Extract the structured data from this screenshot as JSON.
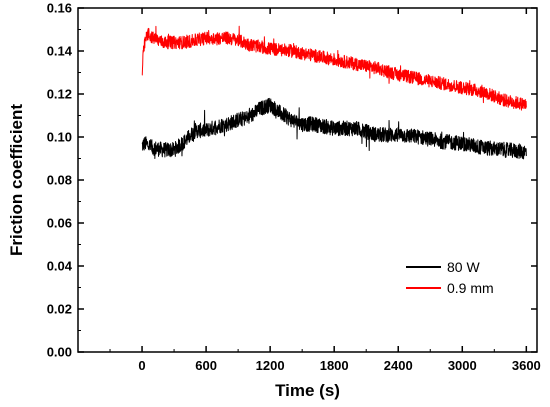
{
  "chart_data": {
    "type": "line",
    "title": "",
    "xlabel": "Time (s)",
    "ylabel": "Friction coefficient",
    "xlim": [
      -600,
      3700
    ],
    "ylim": [
      0.0,
      0.16
    ],
    "xticks": [
      0,
      600,
      1200,
      1800,
      2400,
      3000,
      3600
    ],
    "xtick_labels": [
      "0",
      "600",
      "1200",
      "1800",
      "2400",
      "3000",
      "3600"
    ],
    "yticks": [
      0.0,
      0.02,
      0.04,
      0.06,
      0.08,
      0.1,
      0.12,
      0.14,
      0.16
    ],
    "ytick_labels": [
      "0.00",
      "0.02",
      "0.04",
      "0.06",
      "0.08",
      "0.10",
      "0.12",
      "0.14",
      "0.16"
    ],
    "grid": false,
    "legend_position": "bottom-right",
    "series": [
      {
        "name": "80 W",
        "color": "#000000",
        "noise": 0.0035,
        "x": [
          0,
          30,
          100,
          200,
          300,
          400,
          500,
          600,
          700,
          800,
          900,
          1000,
          1100,
          1200,
          1300,
          1400,
          1500,
          1600,
          1800,
          2000,
          2200,
          2400,
          2600,
          2800,
          3000,
          3200,
          3400,
          3600
        ],
        "y": [
          0.096,
          0.097,
          0.095,
          0.094,
          0.094,
          0.098,
          0.103,
          0.103,
          0.105,
          0.106,
          0.108,
          0.109,
          0.113,
          0.115,
          0.111,
          0.108,
          0.106,
          0.106,
          0.104,
          0.104,
          0.101,
          0.101,
          0.1,
          0.098,
          0.097,
          0.095,
          0.094,
          0.093
        ]
      },
      {
        "name": "0.9 mm",
        "color": "#ff0000",
        "noise": 0.003,
        "x": [
          0,
          10,
          30,
          60,
          100,
          150,
          200,
          300,
          400,
          500,
          600,
          700,
          800,
          900,
          1000,
          1200,
          1400,
          1600,
          1800,
          2000,
          2200,
          2400,
          2600,
          2800,
          3000,
          3200,
          3400,
          3600
        ],
        "y": [
          0.128,
          0.138,
          0.145,
          0.148,
          0.146,
          0.145,
          0.144,
          0.144,
          0.144,
          0.145,
          0.146,
          0.146,
          0.146,
          0.145,
          0.143,
          0.141,
          0.14,
          0.138,
          0.136,
          0.134,
          0.132,
          0.129,
          0.127,
          0.125,
          0.123,
          0.121,
          0.117,
          0.115
        ]
      }
    ]
  }
}
